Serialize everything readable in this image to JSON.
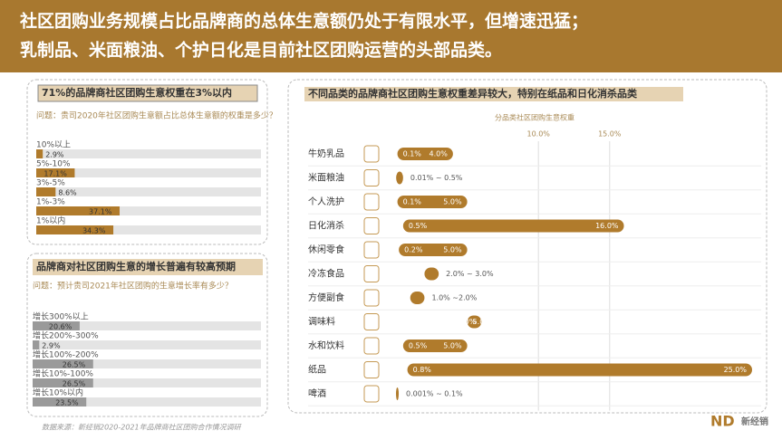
{
  "header": {
    "title": [
      "社区团购业务规模占比品牌商的总体生意额仍处于有限水平，但增速迅猛；",
      "乳制品、米面粮油、个护日化是目前社区团购运营的头部品类。"
    ]
  },
  "chart_data": [
    {
      "type": "hbar_track",
      "title": "71%的品牌商社区团购生意权重在3%以内",
      "subtitle": "问题：贵司2020年社区团购生意额占比总体生意额的权重是多少？",
      "categories": [
        "10%以上",
        "5%-10%",
        "3%-5%",
        "1%-3%",
        "1%以内"
      ],
      "values": [
        2.9,
        17.1,
        8.6,
        37.1,
        34.3
      ],
      "value_labels": [
        "2.9%",
        "17.1%",
        "8.6%",
        "37.1%",
        "34.3%"
      ],
      "xlim": [
        0,
        100
      ],
      "color": "#b07b2c"
    },
    {
      "type": "hbar_track",
      "title": "品牌商对社区团购生意的增长普遍有较高预期",
      "subtitle": "问题：预计贵司2021年社区团购的生意增长率有多少？",
      "categories": [
        "增长300%以上",
        "增长200%-300%",
        "增长100%-200%",
        "增长10%-100%",
        "增长10%以内"
      ],
      "values": [
        20.6,
        2.9,
        26.5,
        26.5,
        23.5
      ],
      "value_labels": [
        "20.6%",
        "2.9%",
        "26.5%",
        "26.5%",
        "23.5%"
      ],
      "xlim": [
        0,
        100
      ],
      "color": "#9a9a9a"
    },
    {
      "type": "range_bar",
      "title": "不同品类的品牌商社区团购生意权重差异较大，特别在纸品和日化消杀品类",
      "x_label": "分品类社区团购生意权重",
      "categories": [
        "牛奶乳品",
        "米面粮油",
        "个人洗护",
        "日化消杀",
        "休闲零食",
        "冷冻食品",
        "方便副食",
        "调味料",
        "水和饮料",
        "纸品",
        "啤酒"
      ],
      "low": [
        0.1,
        0.01,
        0.1,
        0.5,
        0.2,
        2.0,
        1.0,
        5.0,
        0.5,
        0.8,
        0.001
      ],
      "high": [
        4.0,
        0.5,
        5.0,
        16.0,
        5.0,
        3.0,
        2.0,
        6.0,
        5.0,
        25.0,
        0.1
      ],
      "value_labels": [
        [
          "0.1%",
          "4.0%"
        ],
        [
          "0.01% ~ 0.5%"
        ],
        [
          "0.1%",
          "5.0%"
        ],
        [
          "0.5%",
          "16.0%"
        ],
        [
          "0.2%",
          "5.0%"
        ],
        [
          "2.0% ~ 3.0%"
        ],
        [
          "1.0% ~2.0%"
        ],
        [
          "5.0%",
          "6.0%"
        ],
        [
          "0.5%",
          "5.0%"
        ],
        [
          "0.8%",
          "25.0%"
        ],
        [
          "0.001% ~ 0.1%"
        ]
      ],
      "xlim": [
        0,
        25
      ],
      "xticks": [
        {
          "value": 10,
          "label": "10.0%"
        },
        {
          "value": 15,
          "label": "15.0%"
        }
      ],
      "grid": true,
      "color": "#b07b2c"
    }
  ],
  "footer": {
    "source": "数据来源：新经销2020-2021年品牌商社区团购合作情况调研",
    "logo": "新经销"
  }
}
